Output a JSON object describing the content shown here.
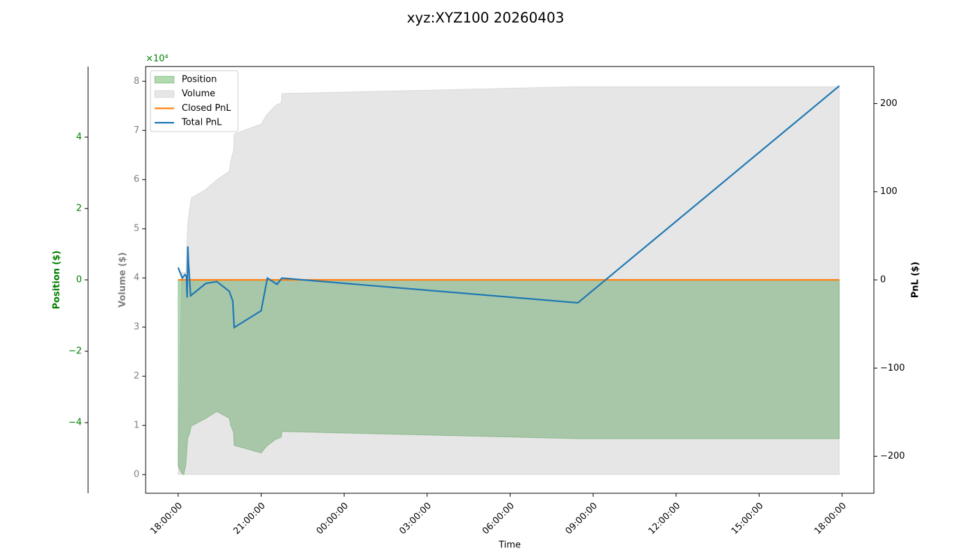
{
  "chart_data": {
    "type": "line",
    "title": "xyz:XYZ100 20260403",
    "x_label": "Time",
    "xlim": [
      -1.175,
      25.15
    ],
    "xticks": [
      {
        "value": 0,
        "label": "18:00:00"
      },
      {
        "value": 3,
        "label": "21:00:00"
      },
      {
        "value": 6,
        "label": "00:00:00"
      },
      {
        "value": 9,
        "label": "03:00:00"
      },
      {
        "value": 12,
        "label": "06:00:00"
      },
      {
        "value": 15,
        "label": "09:00:00"
      },
      {
        "value": 18,
        "label": "12:00:00"
      },
      {
        "value": 21,
        "label": "15:00:00"
      },
      {
        "value": 24,
        "label": "18:00:00"
      }
    ],
    "axes": {
      "position": {
        "label": "Position ($)",
        "color": "#008000",
        "offset_label": "×10⁴",
        "ylim": [
          -5.98,
          5.98
        ],
        "yticks": [
          {
            "value": -4,
            "label": "−4"
          },
          {
            "value": -2,
            "label": "−2"
          },
          0,
          2,
          4
        ]
      },
      "volume": {
        "label": "Volume ($)",
        "color": "#808080",
        "ylim": [
          -0.38,
          8.3
        ],
        "yticks": [
          0,
          1,
          2,
          3,
          4,
          5,
          6,
          7,
          8
        ]
      },
      "pnl": {
        "label": "PnL ($)",
        "color": "#000000",
        "ylim": [
          -242,
          242
        ],
        "yticks": [
          {
            "value": -200,
            "label": "−200"
          },
          {
            "value": -100,
            "label": "−100"
          },
          0,
          100,
          200
        ]
      }
    },
    "legend": "upper left",
    "series": [
      {
        "name": "Position",
        "type": "area",
        "axis": "position",
        "color": "#008000",
        "alpha": 0.3,
        "x": [
          0,
          0.125,
          0.2,
          0.275,
          0.35,
          0.4,
          0.475,
          1.0,
          1.4,
          1.85,
          1.9,
          2.0,
          2.025,
          3.0,
          3.2,
          3.525,
          3.725,
          3.75,
          14.45,
          23.9
        ],
        "values": [
          -5.22,
          -5.42,
          -5.46,
          -5.2,
          -4.41,
          -4.35,
          -4.1,
          -3.88,
          -3.69,
          -3.88,
          -4.08,
          -4.27,
          -4.64,
          -4.85,
          -4.66,
          -4.47,
          -4.41,
          -4.25,
          -4.45,
          -4.45
        ]
      },
      {
        "name": "Volume",
        "type": "area",
        "axis": "volume",
        "color": "#808080",
        "alpha": 0.2,
        "x": [
          0,
          0.125,
          0.275,
          0.35,
          0.4,
          0.475,
          1.0,
          1.4,
          1.85,
          1.9,
          2.0,
          2.025,
          3.0,
          3.2,
          3.525,
          3.725,
          3.75,
          14.45,
          23.9
        ],
        "values": [
          0,
          4.11,
          4.11,
          5.14,
          5.35,
          5.63,
          5.8,
          6.0,
          6.17,
          6.38,
          6.59,
          6.93,
          7.13,
          7.32,
          7.51,
          7.56,
          7.75,
          7.89,
          7.89
        ]
      },
      {
        "name": "Closed PnL",
        "type": "line",
        "axis": "pnl",
        "color": "#ff7f0e",
        "x": [
          0,
          23.9
        ],
        "values": [
          0,
          0
        ]
      },
      {
        "name": "Total PnL",
        "type": "line",
        "axis": "pnl",
        "color": "#1f77b4",
        "x": [
          0,
          0.15,
          0.25,
          0.3,
          0.325,
          0.35,
          0.375,
          0.45,
          1.0,
          1.4,
          1.85,
          1.975,
          2.025,
          3.0,
          3.225,
          3.575,
          3.75,
          14.45,
          23.9
        ],
        "values": [
          14,
          2,
          6,
          4,
          -20,
          38,
          19,
          -18,
          -4,
          -2,
          -13,
          -24,
          -54,
          -35,
          2,
          -5,
          2,
          -26,
          220
        ]
      }
    ]
  }
}
